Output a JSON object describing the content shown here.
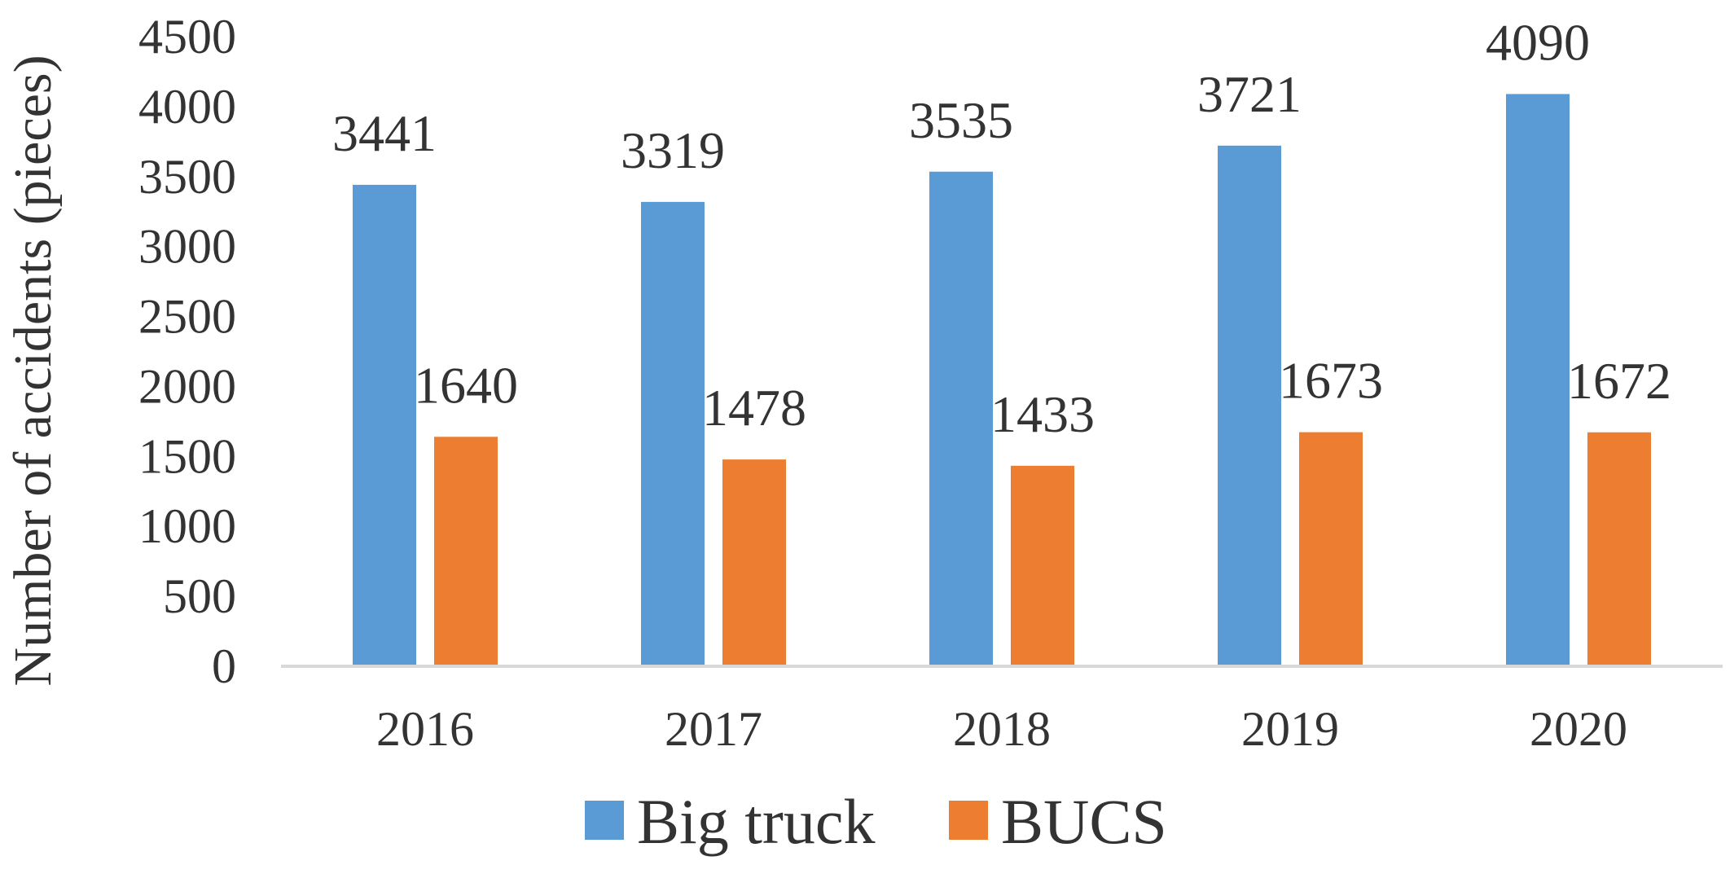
{
  "chart_data": {
    "type": "bar",
    "title": "",
    "xlabel": "",
    "ylabel": "Number of accidents (pieces)",
    "categories": [
      "2016",
      "2017",
      "2018",
      "2019",
      "2020"
    ],
    "series": [
      {
        "name": "Big truck",
        "values": [
          3441,
          3319,
          3535,
          3721,
          4090
        ],
        "color": "#5b9bd5"
      },
      {
        "name": "BUCS",
        "values": [
          1640,
          1478,
          1433,
          1673,
          1672
        ],
        "color": "#ed7d31"
      }
    ],
    "ylim": [
      0,
      4500
    ],
    "yticks": [
      "0",
      "500",
      "1000",
      "1500",
      "2000",
      "2500",
      "3000",
      "3500",
      "4000",
      "4500"
    ],
    "grid": false,
    "data_labels": true,
    "legend": "bottom-center"
  }
}
